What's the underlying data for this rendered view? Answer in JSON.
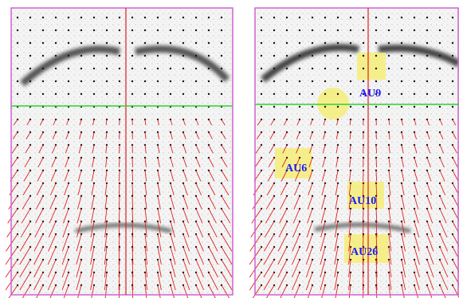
{
  "right_panel": {
    "action_units": [
      {
        "label": "AU9"
      },
      {
        "label": "AU6"
      },
      {
        "label": "AU10"
      },
      {
        "label": "AU26"
      }
    ]
  }
}
